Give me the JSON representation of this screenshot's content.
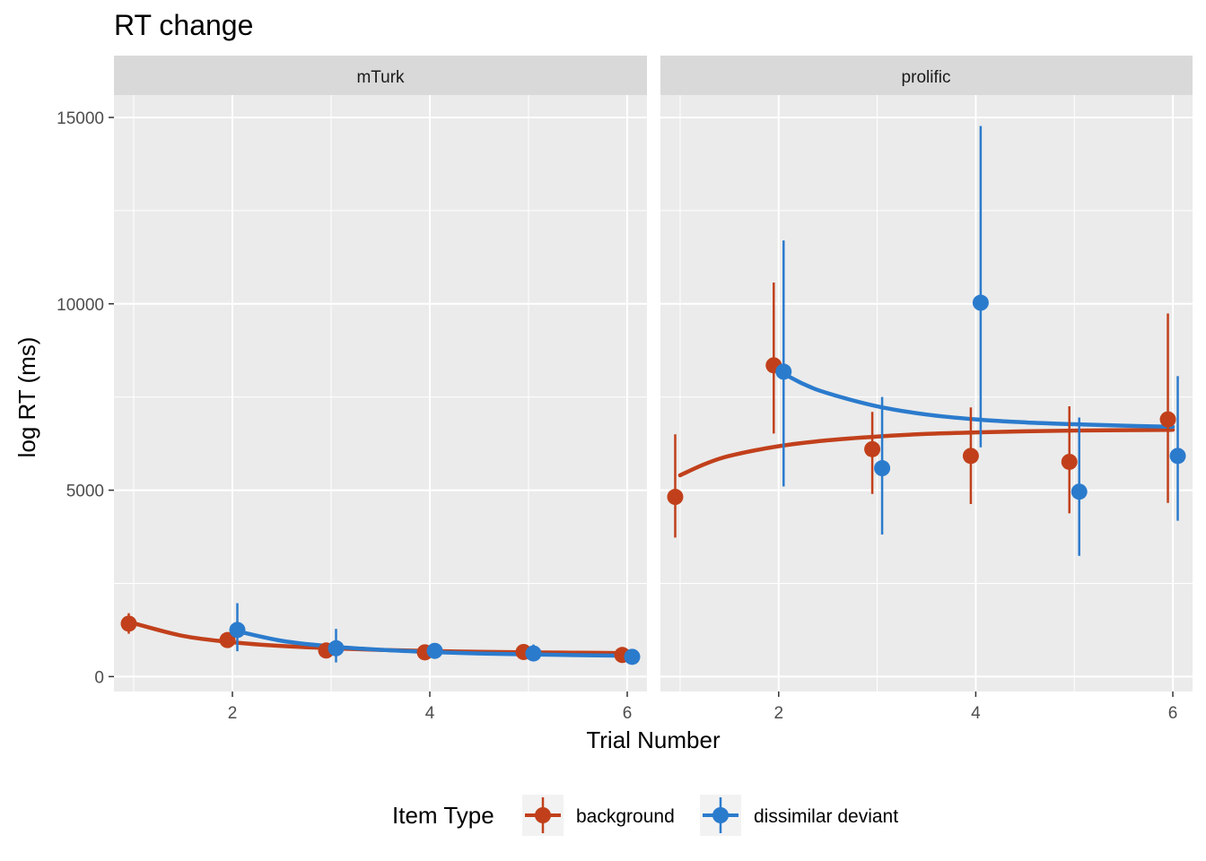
{
  "chart_data": {
    "type": "scatter",
    "title": "RT change",
    "xlabel": "Trial Number",
    "ylabel": "log RT (ms)",
    "xlim": [
      0.8,
      6.2
    ],
    "ylim": [
      -400,
      15600
    ],
    "x_ticks": [
      2,
      4,
      6
    ],
    "y_ticks": [
      0,
      5000,
      10000,
      15000
    ],
    "y_tick_labels": [
      "0",
      "5000",
      "10000",
      "15000"
    ],
    "x_tick_labels": [
      "2",
      "4",
      "6"
    ],
    "grid": true,
    "legend": {
      "title": "Item Type",
      "position": "bottom",
      "entries": [
        "background",
        "dissimilar deviant"
      ]
    },
    "colors": {
      "background": "#c1401b",
      "dissimilar deviant": "#2b7bcd"
    },
    "dodge": 0.05,
    "panels": [
      {
        "name": "mTurk",
        "series": [
          {
            "name": "background",
            "x": [
              1,
              2,
              3,
              4,
              5,
              6
            ],
            "y": [
              1420,
              980,
              700,
              650,
              660,
              580
            ],
            "ymin": [
              1150,
              880,
              620,
              560,
              560,
              480
            ],
            "ymax": [
              1700,
              1080,
              800,
              730,
              760,
              700
            ],
            "fit_x": [
              1,
              1.5,
              2,
              2.5,
              3,
              3.5,
              4,
              4.5,
              5,
              5.5,
              6
            ],
            "fit_y": [
              1430,
              1090,
              920,
              820,
              760,
              715,
              685,
              665,
              650,
              640,
              630
            ]
          },
          {
            "name": "dissimilar deviant",
            "x": [
              2,
              3,
              4,
              5,
              6
            ],
            "y": [
              1250,
              760,
              690,
              620,
              530
            ],
            "ymin": [
              680,
              380,
              560,
              480,
              420
            ],
            "ymax": [
              1970,
              1280,
              880,
              860,
              650
            ],
            "fit_x": [
              2,
              2.5,
              3,
              3.5,
              4,
              4.5,
              5,
              5.5,
              6
            ],
            "fit_y": [
              1250,
              960,
              810,
              720,
              660,
              620,
              595,
              575,
              560
            ]
          }
        ]
      },
      {
        "name": "prolific",
        "series": [
          {
            "name": "background",
            "x": [
              1,
              2,
              3,
              4,
              5,
              6
            ],
            "y": [
              4820,
              8350,
              6100,
              5920,
              5760,
              6900
            ],
            "ymin": [
              3730,
              6520,
              4900,
              4630,
              4380,
              4660
            ],
            "ymax": [
              6500,
              10570,
              7100,
              7220,
              7250,
              9740
            ],
            "fit_x": [
              1,
              1.25,
              1.5,
              2,
              2.5,
              3,
              3.5,
              4,
              4.5,
              5,
              5.5,
              6
            ],
            "fit_y": [
              5400,
              5700,
              5920,
              6180,
              6340,
              6440,
              6510,
              6550,
              6580,
              6600,
              6610,
              6620
            ]
          },
          {
            "name": "dissimilar deviant",
            "x": [
              2,
              3,
              4,
              5,
              6
            ],
            "y": [
              8180,
              5590,
              10030,
              4960,
              5920
            ],
            "ymin": [
              5100,
              3810,
              6150,
              3240,
              4180
            ],
            "ymax": [
              11700,
              7500,
              14770,
              6950,
              8060
            ],
            "fit_x": [
              2,
              2.25,
              2.5,
              3,
              3.5,
              4,
              4.5,
              5,
              5.5,
              6
            ],
            "fit_y": [
              8200,
              7850,
              7600,
              7250,
              7030,
              6900,
              6820,
              6770,
              6730,
              6700
            ]
          }
        ]
      }
    ]
  }
}
